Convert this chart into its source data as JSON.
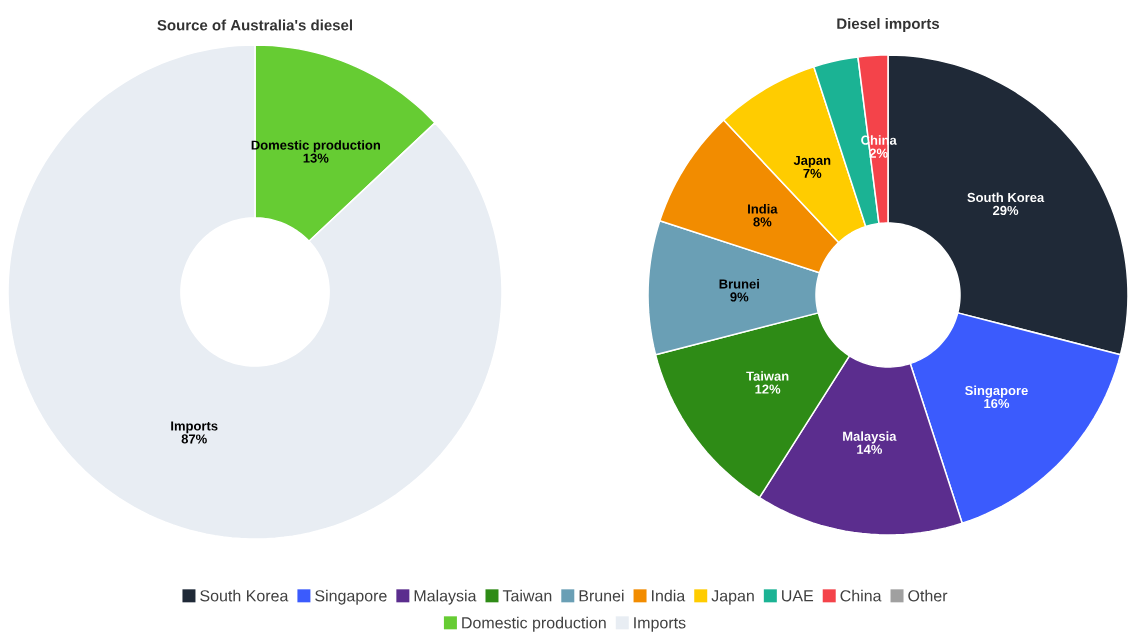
{
  "chart_data": [
    {
      "type": "donut",
      "title": "Source of Australia's diesel",
      "categories": [
        "Domestic production",
        "Imports"
      ],
      "values": [
        13,
        87
      ],
      "colors": [
        "#66cc33",
        "#e8edf3"
      ],
      "value_labels": [
        "13%",
        "87%"
      ],
      "legend": "bottom"
    },
    {
      "type": "donut",
      "title": "Diesel imports",
      "categories": [
        "South Korea",
        "Singapore",
        "Malaysia",
        "Taiwan",
        "Brunei",
        "India",
        "Japan",
        "UAE",
        "China",
        "Other"
      ],
      "values": [
        29,
        16,
        14,
        12,
        9,
        8,
        7,
        3,
        2,
        0
      ],
      "colors": [
        "#1f2937",
        "#3b5bfd",
        "#5b2d8e",
        "#2e8b16",
        "#6a9fb5",
        "#f28c00",
        "#ffcc00",
        "#1bb394",
        "#f4434a",
        "#a0a0a0"
      ],
      "value_labels": [
        "29%",
        "16%",
        "14%",
        "12%",
        "9%",
        "8%",
        "7%",
        null,
        "2%",
        null
      ],
      "legend": "bottom"
    }
  ]
}
